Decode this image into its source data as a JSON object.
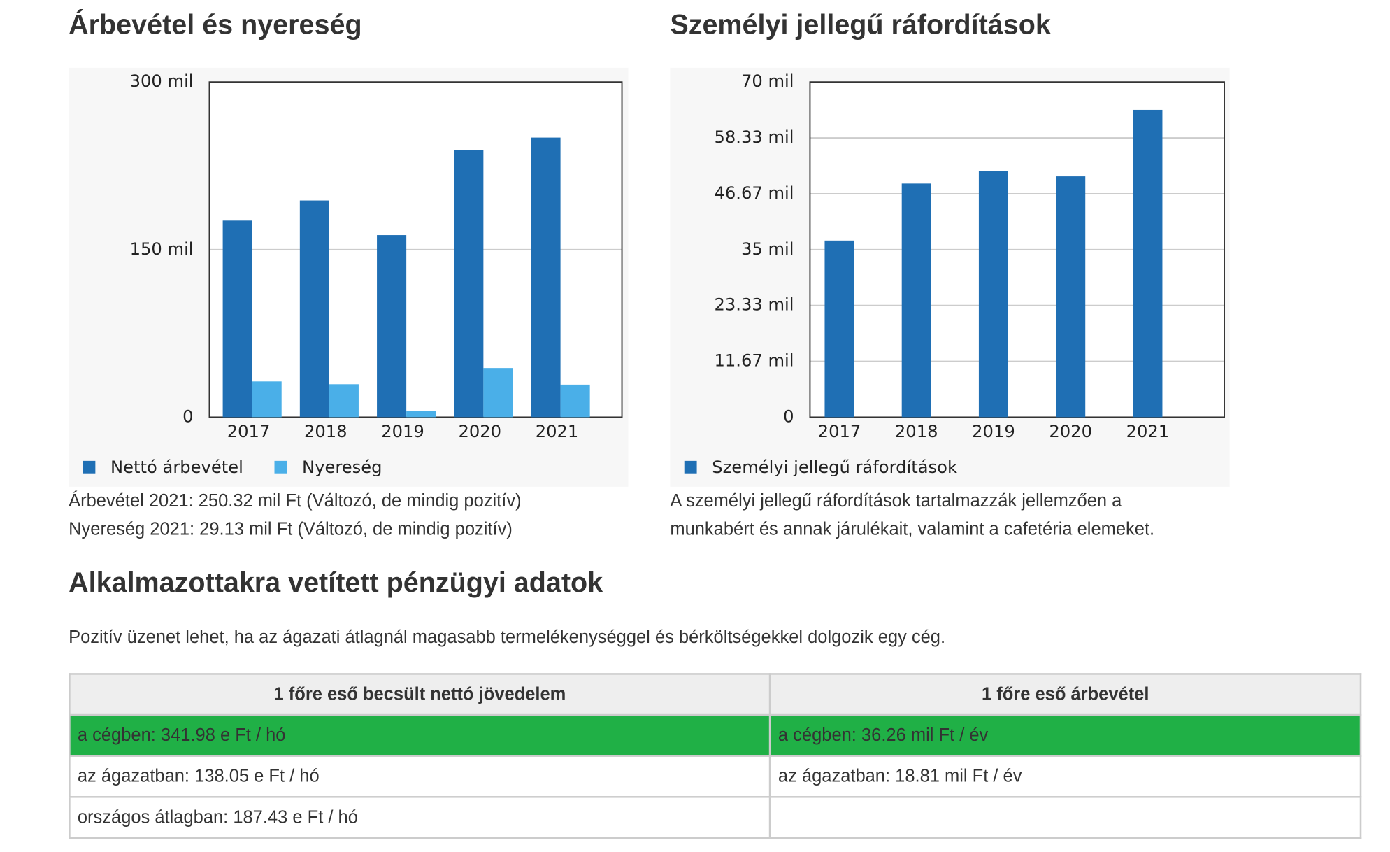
{
  "chart_data": [
    {
      "type": "bar",
      "title": "Árbevétel és nyereség",
      "categories": [
        "2017",
        "2018",
        "2019",
        "2020",
        "2021"
      ],
      "series": [
        {
          "name": "Nettó árbevétel",
          "color": "#1f6fb4",
          "values": [
            176,
            194,
            163,
            239,
            250.32
          ]
        },
        {
          "name": "Nyereség",
          "color": "#4aafe8",
          "values": [
            32,
            29.5,
            5.6,
            44,
            29.13
          ]
        }
      ],
      "ylim": [
        0,
        300
      ],
      "yticks": [
        0,
        {
          "value": 150,
          "label": "150 mil"
        },
        {
          "value": 300,
          "label": "300 mil"
        }
      ],
      "grid": true,
      "legend": "bottom",
      "notes": [
        "Árbevétel 2021: 250.32 mil Ft (Változó, de mindig pozitív)",
        "Nyereség 2021: 29.13 mil Ft (Változó, de mindig pozitív)"
      ]
    },
    {
      "type": "bar",
      "title": "Személyi jellegű ráfordítások",
      "categories": [
        "2017",
        "2018",
        "2019",
        "2020",
        "2021"
      ],
      "series": [
        {
          "name": "Személyi jellegű ráfordítások",
          "color": "#1f6fb4",
          "values": [
            36.9,
            48.8,
            51.4,
            50.3,
            64.2
          ]
        }
      ],
      "ylim": [
        0,
        70
      ],
      "yticks": [
        0,
        {
          "value": 11.67,
          "label": "11.67 mil"
        },
        {
          "value": 23.33,
          "label": "23.33 mil"
        },
        {
          "value": 35,
          "label": "35 mil"
        },
        {
          "value": 46.67,
          "label": "46.67 mil"
        },
        {
          "value": 58.33,
          "label": "58.33 mil"
        },
        {
          "value": 70,
          "label": "70 mil"
        }
      ],
      "grid": true,
      "legend": "bottom",
      "notes": [
        "A személyi jellegű ráfordítások tartalmazzák jellemzően a munkabért és annak járulékait, valamint a cafetéria elemeket."
      ]
    }
  ],
  "section": {
    "title": "Alkalmazottakra vetített pénzügyi adatok",
    "text": "Pozitív üzenet lehet, ha az ágazati átlagnál magasabb termelékenységgel és bérköltségekkel dolgozik egy cég."
  },
  "table": {
    "header": [
      "1 főre eső becsült nettó jövedelem",
      "1 főre eső árbevétel"
    ],
    "rows": [
      [
        "a cégben: 341.98 e Ft / hó",
        "a cégben: 36.26 mil Ft / év"
      ],
      [
        "az ágazatban: 138.05 e Ft / hó",
        "az ágazatban: 18.81 mil Ft / év"
      ],
      [
        "országos átlagban: 187.43 e Ft / hó"
      ]
    ]
  }
}
